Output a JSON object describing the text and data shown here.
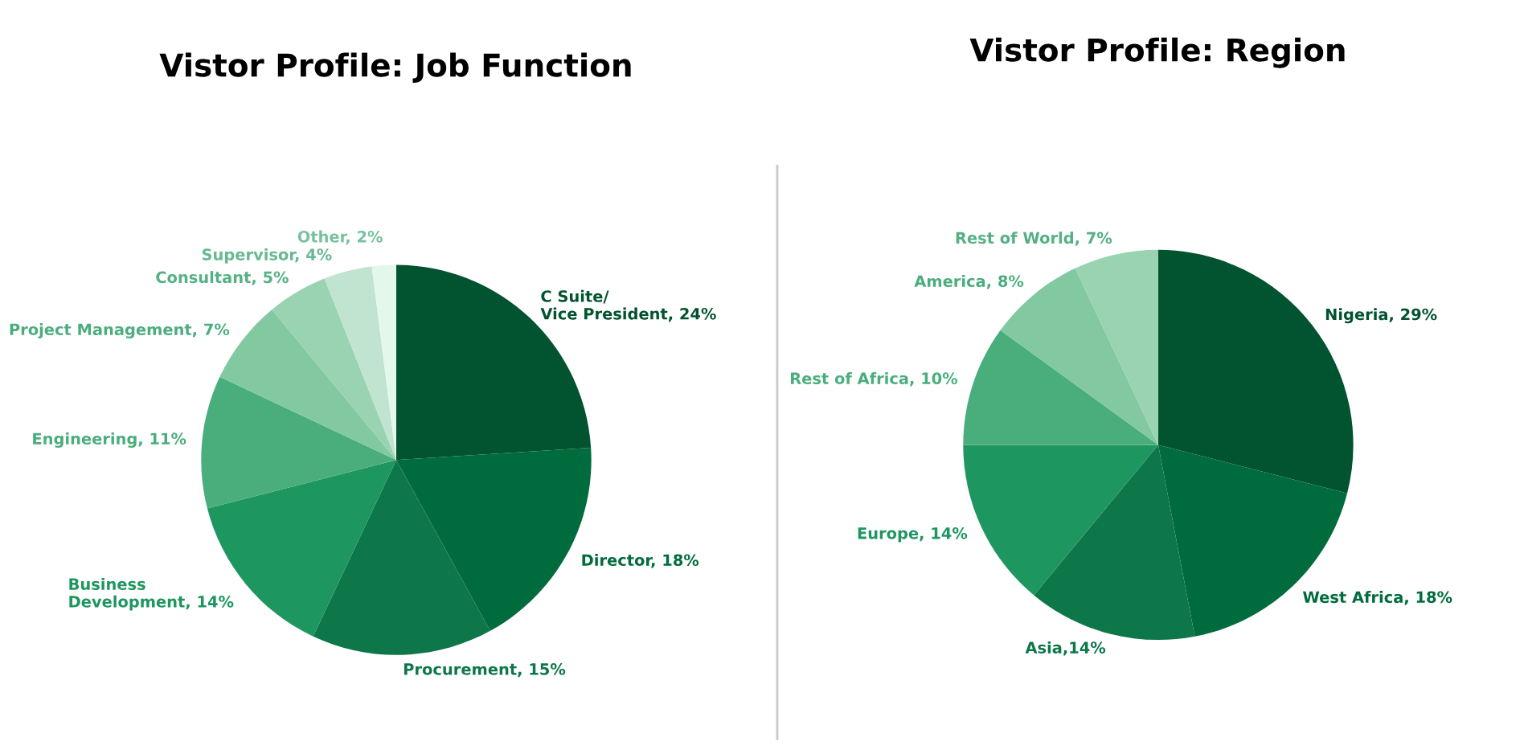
{
  "chart_data": [
    {
      "type": "pie",
      "title": "Vistor Profile: Job Function",
      "categories": [
        "C Suite/\nVice President, 24%",
        "Director, 18%",
        "Procurement, 15%",
        "Business\nDevelopment, 14%",
        "Engineering, 11%",
        "Project Management, 7%",
        "Consultant, 5%",
        "Supervisor, 4%",
        "Other, 2%"
      ],
      "values": [
        24,
        18,
        15,
        14,
        11,
        7,
        5,
        4,
        2
      ],
      "colors": [
        "#02532f",
        "#006b3c",
        "#0e774a",
        "#1e9660",
        "#4aae7c",
        "#82c9a2",
        "#99d3b1",
        "#c0e4cf",
        "#e3f7ea"
      ]
    },
    {
      "type": "pie",
      "title": "Vistor Profile: Region",
      "categories": [
        "Nigeria, 29%",
        "West Africa, 18%",
        "Asia,14%",
        "Europe, 14%",
        "Rest of Africa, 10%",
        "America, 8%",
        "Rest of World, 7%"
      ],
      "values": [
        29,
        18,
        14,
        14,
        10,
        8,
        7
      ],
      "colors": [
        "#02532f",
        "#006b3c",
        "#0e774a",
        "#1e9660",
        "#4aae7c",
        "#82c9a2",
        "#99d3b1"
      ]
    }
  ]
}
